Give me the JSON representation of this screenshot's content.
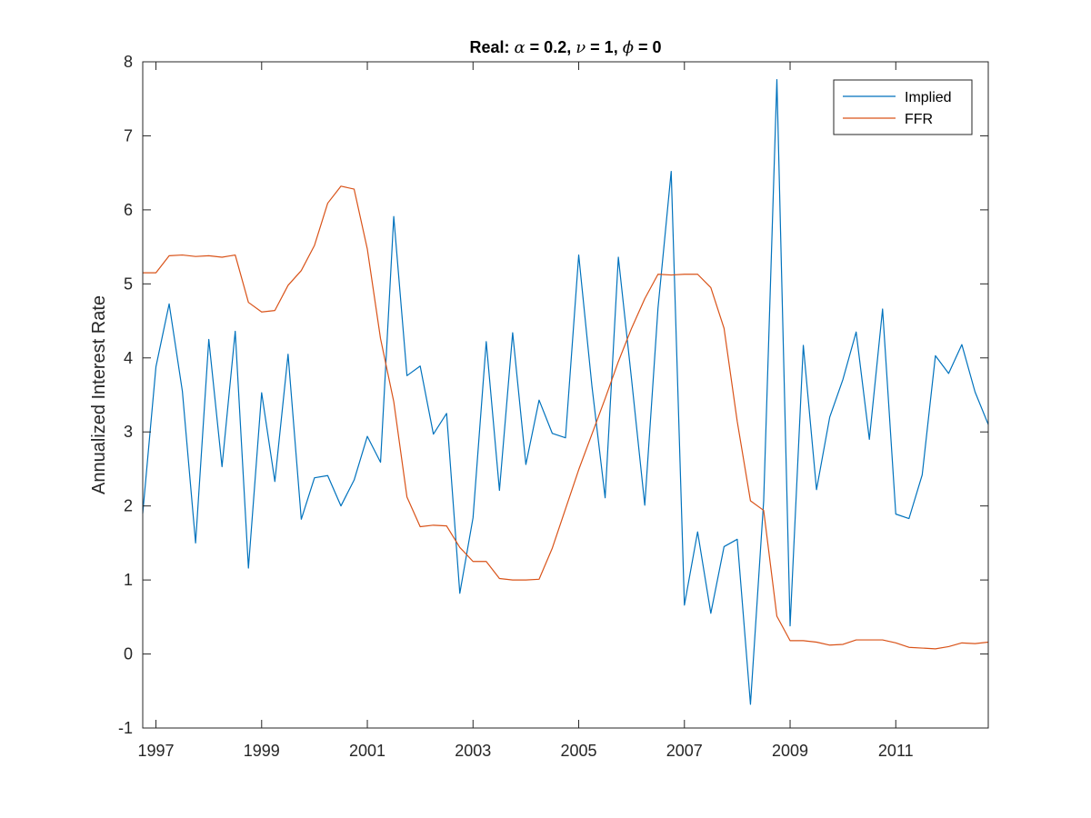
{
  "chart_data": {
    "type": "line",
    "title_parts": [
      {
        "text": "Real: ",
        "italic": false
      },
      {
        "text": "α",
        "italic": true
      },
      {
        "text": " = 0.2, ",
        "italic": false
      },
      {
        "text": "ν",
        "italic": true
      },
      {
        "text": " = 1, ",
        "italic": false
      },
      {
        "text": "ϕ",
        "italic": true
      },
      {
        "text": " = 0",
        "italic": false
      }
    ],
    "xlabel": "",
    "ylabel": "Annualized Interest Rate",
    "xlim": [
      1996.75,
      2012.75
    ],
    "ylim": [
      -1,
      8
    ],
    "x_tick_values": [
      1997,
      1999,
      2001,
      2003,
      2005,
      2007,
      2009,
      2011
    ],
    "x_tick_labels": [
      "1997",
      "1999",
      "2001",
      "2003",
      "2005",
      "2007",
      "2009",
      "2011"
    ],
    "y_tick_values": [
      -1,
      0,
      1,
      2,
      3,
      4,
      5,
      6,
      7,
      8
    ],
    "y_tick_labels": [
      "-1",
      "0",
      "1",
      "2",
      "3",
      "4",
      "5",
      "6",
      "7",
      "8"
    ],
    "grid": false,
    "legend_position": "top-right",
    "x": [
      1996.75,
      1997.0,
      1997.25,
      1997.5,
      1997.75,
      1998.0,
      1998.25,
      1998.5,
      1998.75,
      1999.0,
      1999.25,
      1999.5,
      1999.75,
      2000.0,
      2000.25,
      2000.5,
      2000.75,
      2001.0,
      2001.25,
      2001.5,
      2001.75,
      2002.0,
      2002.25,
      2002.5,
      2002.75,
      2003.0,
      2003.25,
      2003.5,
      2003.75,
      2004.0,
      2004.25,
      2004.5,
      2004.75,
      2005.0,
      2005.25,
      2005.5,
      2005.75,
      2006.0,
      2006.25,
      2006.5,
      2006.75,
      2007.0,
      2007.25,
      2007.5,
      2007.75,
      2008.0,
      2008.25,
      2008.5,
      2008.75,
      2009.0,
      2009.25,
      2009.5,
      2009.75,
      2010.0,
      2010.25,
      2010.5,
      2010.75,
      2011.0,
      2011.25,
      2011.5,
      2011.75,
      2012.0,
      2012.25,
      2012.5,
      2012.75
    ],
    "series": [
      {
        "name": "Implied",
        "color": "#0072bd",
        "values": [
          1.9,
          3.88,
          4.73,
          3.55,
          1.5,
          4.25,
          2.53,
          4.36,
          1.16,
          3.53,
          2.33,
          4.05,
          1.82,
          2.38,
          2.41,
          2.0,
          2.35,
          2.94,
          2.59,
          5.91,
          3.76,
          3.89,
          2.97,
          3.25,
          0.82,
          1.84,
          4.22,
          2.21,
          4.34,
          2.56,
          3.43,
          2.98,
          2.92,
          5.39,
          3.62,
          2.11,
          5.36,
          3.71,
          2.01,
          4.67,
          6.52,
          0.66,
          1.65,
          0.55,
          1.45,
          1.55,
          -0.68,
          2.07,
          7.76,
          0.38,
          4.17,
          2.22,
          3.2,
          3.71,
          4.35,
          2.9,
          4.66,
          1.89,
          1.83,
          2.42,
          4.03,
          3.79,
          4.18,
          3.54,
          3.1
        ]
      },
      {
        "name": "FFR",
        "color": "#d95319",
        "values": [
          5.15,
          5.15,
          5.38,
          5.39,
          5.37,
          5.38,
          5.36,
          5.39,
          4.75,
          4.62,
          4.64,
          4.98,
          5.18,
          5.52,
          6.09,
          6.32,
          6.28,
          5.47,
          4.26,
          3.41,
          2.12,
          1.72,
          1.74,
          1.73,
          1.44,
          1.25,
          1.25,
          1.02,
          1.0,
          1.0,
          1.01,
          1.43,
          1.96,
          2.49,
          2.97,
          3.45,
          3.95,
          4.4,
          4.8,
          5.13,
          5.12,
          5.13,
          5.13,
          4.95,
          4.4,
          3.14,
          2.07,
          1.94,
          0.51,
          0.18,
          0.18,
          0.16,
          0.12,
          0.13,
          0.19,
          0.19,
          0.19,
          0.15,
          0.09,
          0.08,
          0.07,
          0.1,
          0.15,
          0.14,
          0.16
        ]
      }
    ]
  }
}
